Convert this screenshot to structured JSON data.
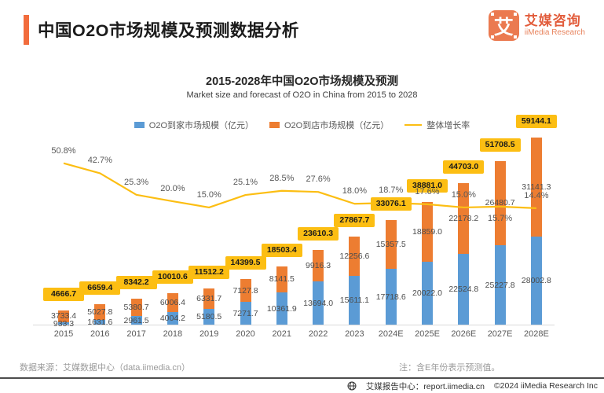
{
  "header": {
    "title": "中国O2O市场规模及预测数据分析",
    "logo": {
      "mark": "艾",
      "name": "艾媒咨询",
      "sub": "iiMedia Research"
    }
  },
  "chart_data": {
    "type": "bar",
    "subtype": "stacked-bar-with-line",
    "title": "2015-2028年中国O2O市场规模及预测",
    "subtitle": "Market size and forecast of O2O in China from 2015 to 2028",
    "categories": [
      "2015",
      "2016",
      "2017",
      "2018",
      "2019",
      "2020",
      "2021",
      "2022",
      "2023",
      "2024E",
      "2025E",
      "2026E",
      "2027E",
      "2028E"
    ],
    "series": [
      {
        "name": "O2O到家市场规模（亿元）",
        "type": "bar",
        "color": "#5b9bd5",
        "values": [
          933.3,
          1631.6,
          2961.5,
          4004.2,
          5180.5,
          7271.7,
          10361.9,
          13694.0,
          15611.1,
          17718.6,
          20022.0,
          22524.8,
          25227.8,
          28002.8
        ]
      },
      {
        "name": "O2O到店市场规模（亿元）",
        "type": "bar",
        "color": "#ed7d31",
        "values": [
          3733.4,
          5027.8,
          5380.7,
          6006.4,
          6331.7,
          7127.8,
          8141.5,
          9916.3,
          12256.6,
          15357.5,
          18859.0,
          22178.2,
          26480.7,
          31141.3
        ]
      },
      {
        "name": "整体增长率",
        "type": "line",
        "color": "#fcbe13",
        "unit": "%",
        "values": [
          50.8,
          42.7,
          25.3,
          20.0,
          15.0,
          25.1,
          28.5,
          27.6,
          18.0,
          18.7,
          17.6,
          15.0,
          15.7,
          14.4
        ]
      }
    ],
    "totals": [
      4666.7,
      6659.4,
      8342.2,
      10010.6,
      11512.2,
      14399.5,
      18503.4,
      23610.3,
      27867.7,
      33076.1,
      38881.0,
      44703.0,
      51708.5,
      59144.1
    ],
    "total_label_bg": "#fcbe13",
    "ylim": [
      0,
      60000
    ],
    "grid": false,
    "legend_position": "top"
  },
  "footer": {
    "source": "数据来源：艾媒数据中心（data.iimedia.cn）",
    "note": "注：含E年份表示预测值。",
    "report": "艾媒报告中心：report.iimedia.cn",
    "copyright": "©2024  iiMedia Research Inc"
  }
}
